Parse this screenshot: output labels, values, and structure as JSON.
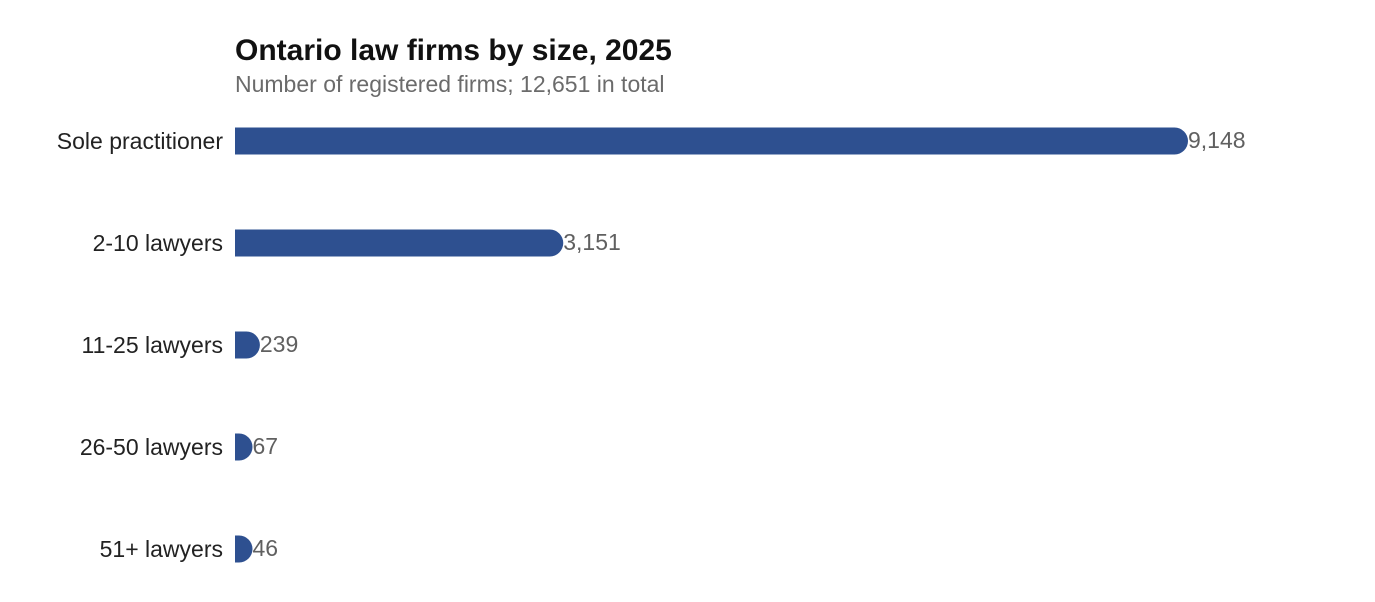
{
  "chart_data": {
    "type": "bar",
    "orientation": "horizontal",
    "title": "Ontario law firms by size, 2025",
    "subtitle": "Number of registered firms; 12,651 in total",
    "categories": [
      "Sole practitioner",
      "2-10 lawyers",
      "11-25 lawyers",
      "26-50 lawyers",
      "51+ lawyers"
    ],
    "values": [
      9148,
      3151,
      239,
      67,
      46
    ],
    "value_labels": [
      "9,148",
      "3,151",
      "239",
      "67",
      "46"
    ],
    "xlim": [
      0,
      9148
    ],
    "grid": false,
    "legend": "none"
  },
  "colors": {
    "bar": "#2e5090",
    "title": "#111111",
    "subtitle": "#6b6b6b",
    "category_label": "#222222",
    "value_label": "#606060"
  }
}
